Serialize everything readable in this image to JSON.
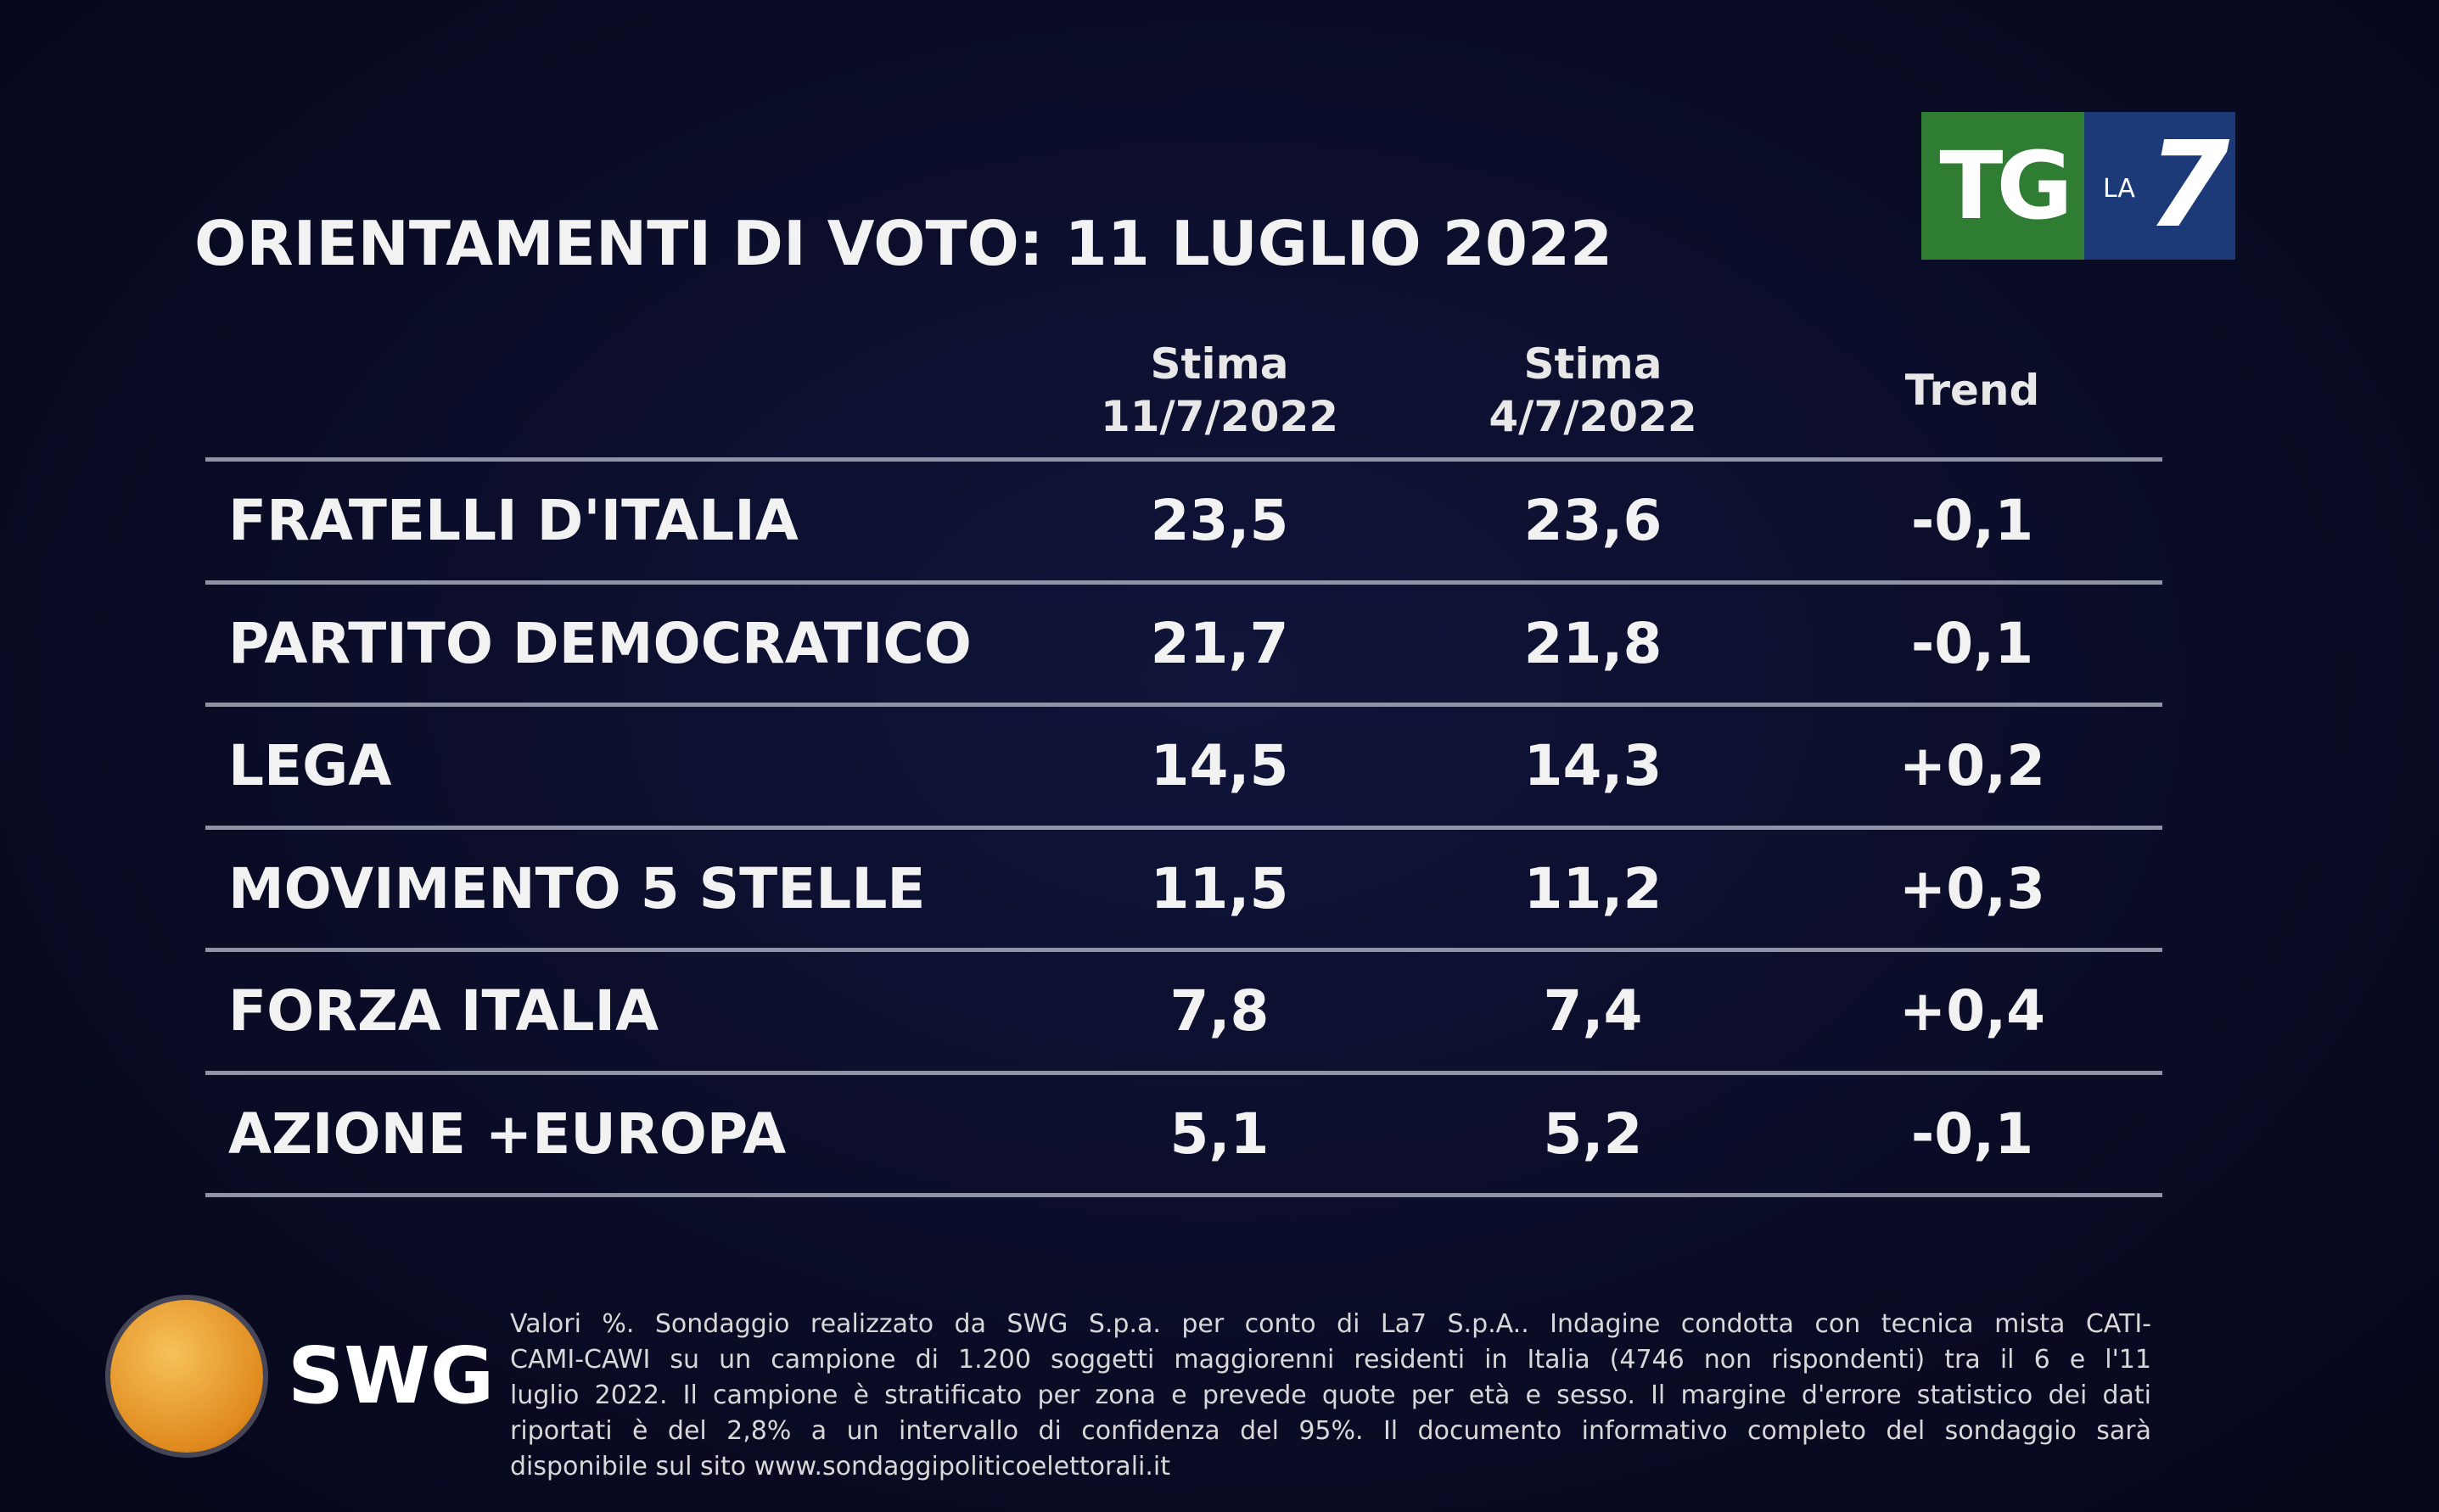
{
  "header": {
    "title": "ORIENTAMENTI DI VOTO: 11 LUGLIO 2022",
    "logo": {
      "tg": "TG",
      "la": "LA",
      "seven": "7"
    }
  },
  "table": {
    "columns": [
      [
        "Stima",
        "11/7/2022"
      ],
      [
        "Stima",
        "4/7/2022"
      ],
      [
        "Trend"
      ]
    ],
    "rows": [
      [
        "FRATELLI D'ITALIA",
        "23,5",
        "23,6",
        "-0,1"
      ],
      [
        "PARTITO DEMOCRATICO",
        "21,7",
        "21,8",
        "-0,1"
      ],
      [
        "LEGA",
        "14,5",
        "14,3",
        "+0,2"
      ],
      [
        "MOVIMENTO 5 STELLE",
        "11,5",
        "11,2",
        "+0,3"
      ],
      [
        "FORZA ITALIA",
        "7,8",
        "7,4",
        "+0,4"
      ],
      [
        "AZIONE +EUROPA",
        "5,1",
        "5,2",
        "-0,1"
      ]
    ]
  },
  "footer": {
    "brand": "SWG",
    "note": [
      "Valori %. Sondaggio realizzato da SWG S.p.a. per conto di La7 S.p.A.. Indagine condotta con tecnica mista CATI-",
      "CAMI-CAWI su un campione di 1.200 soggetti maggiorenni residenti in Italia (4746 non rispondenti) tra il 6 e l'11",
      "luglio 2022. Il campione è stratificato per zona e prevede quote per età e sesso. Il margine d'errore statistico dei dati",
      "riportati è del 2,8% a un intervallo di confidenza del 95%. Il documento informativo completo del sondaggio sarà",
      "disponibile sul sito www.sondaggipoliticoelettorali.it"
    ]
  }
}
